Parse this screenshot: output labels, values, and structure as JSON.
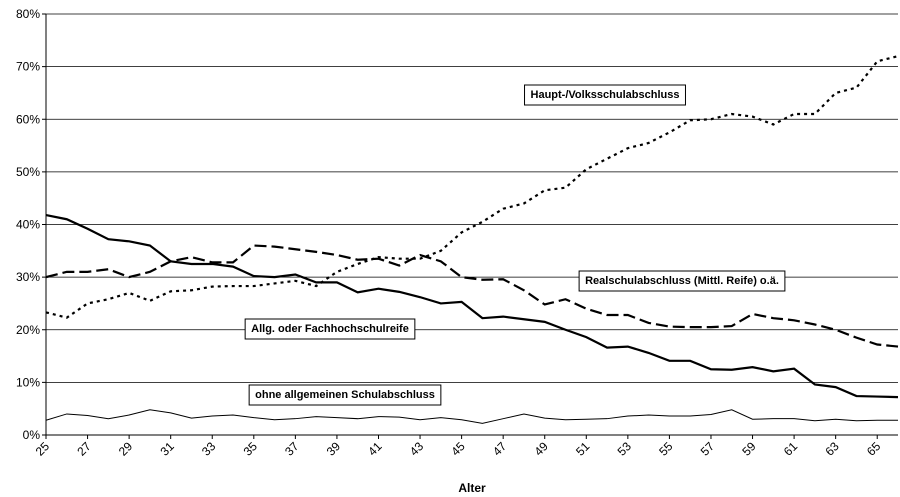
{
  "chart_data": {
    "type": "line",
    "x_label": "Alter",
    "x": [
      25,
      26,
      27,
      28,
      29,
      30,
      31,
      32,
      33,
      34,
      35,
      36,
      37,
      38,
      39,
      40,
      41,
      42,
      43,
      44,
      45,
      46,
      47,
      48,
      49,
      50,
      51,
      52,
      53,
      54,
      55,
      56,
      57,
      58,
      59,
      60,
      61,
      62,
      63,
      64,
      65,
      66
    ],
    "xlim": [
      25,
      66
    ],
    "xticks": [
      25,
      27,
      29,
      31,
      33,
      35,
      37,
      39,
      41,
      43,
      45,
      47,
      49,
      51,
      53,
      55,
      57,
      59,
      61,
      63,
      65
    ],
    "ylim": [
      0,
      80
    ],
    "yticks": [
      {
        "value": 0,
        "label": "0%"
      },
      {
        "value": 10,
        "label": "10%"
      },
      {
        "value": 20,
        "label": "20%"
      },
      {
        "value": 30,
        "label": "30%"
      },
      {
        "value": 40,
        "label": "40%"
      },
      {
        "value": 50,
        "label": "50%"
      },
      {
        "value": 60,
        "label": "60%"
      },
      {
        "value": 70,
        "label": "70%"
      },
      {
        "value": 80,
        "label": "80%"
      }
    ],
    "grid": true,
    "series": [
      {
        "name": "Haupt-/Volksschulabschluss",
        "color": "#000000",
        "values": [
          23.3,
          22.3,
          25,
          25.8,
          27,
          25.5,
          27.3,
          27.5,
          28.2,
          28.3,
          28.3,
          28.8,
          29.3,
          28.3,
          31,
          32.5,
          33.8,
          33.5,
          33.5,
          35,
          38.5,
          40.5,
          43,
          44,
          46.5,
          47,
          50.5,
          52.5,
          54.5,
          55.5,
          57.5,
          59.8,
          60,
          61,
          60.5,
          59,
          61,
          61,
          65,
          66,
          71,
          72
        ]
      },
      {
        "name": "Realschulabschluss (Mittl. Reife) o.ä.",
        "color": "#000000",
        "values": [
          30,
          31,
          31,
          31.5,
          30,
          31,
          33,
          33.8,
          32.8,
          32.8,
          36,
          35.8,
          35.3,
          34.8,
          34.2,
          33.3,
          33.5,
          32.2,
          34.2,
          33,
          30,
          29.5,
          29.6,
          27.5,
          24.8,
          25.8,
          24,
          22.8,
          22.8,
          21.3,
          20.6,
          20.5,
          20.5,
          20.7,
          23,
          22.2,
          21.8,
          21,
          20,
          18.5,
          17.2,
          16.8
        ]
      },
      {
        "name": "Allg. oder Fachhochschulreife",
        "color": "#000000",
        "values": [
          41.8,
          41,
          39.2,
          37.2,
          36.8,
          36,
          33,
          32.5,
          32.5,
          32,
          30.2,
          30,
          30.5,
          29,
          29,
          27.1,
          27.8,
          27.2,
          26.2,
          25,
          25.3,
          22.2,
          22.5,
          22,
          21.5,
          20,
          18.6,
          16.6,
          16.8,
          15.6,
          14.1,
          14.1,
          12.5,
          12.4,
          12.9,
          12.1,
          12.6,
          9.6,
          9.1,
          7.4,
          7.3,
          7.2
        ]
      },
      {
        "name": "ohne allgemeinen Schulabschluss",
        "color": "#000000",
        "values": [
          2.8,
          4,
          3.7,
          3.1,
          3.8,
          4.8,
          4.2,
          3.2,
          3.6,
          3.8,
          3.3,
          2.9,
          3.1,
          3.5,
          3.3,
          3.1,
          3.5,
          3.4,
          2.9,
          3.3,
          2.9,
          2.2,
          3.1,
          4,
          3.2,
          2.9,
          3,
          3.1,
          3.6,
          3.8,
          3.6,
          3.6,
          3.9,
          4.8,
          3,
          3.1,
          3.1,
          2.7,
          3,
          2.7,
          2.8,
          2.8
        ]
      }
    ]
  }
}
